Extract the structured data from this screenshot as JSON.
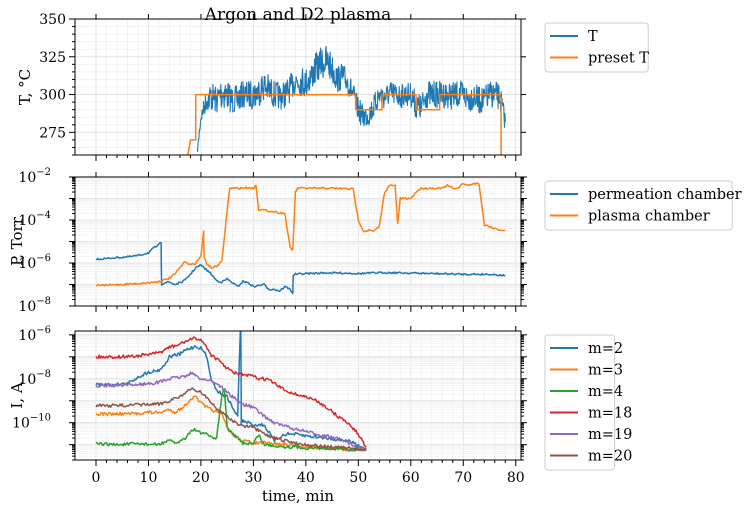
{
  "chart_data": [
    {
      "type": "line",
      "title": "Argon and D2 plasma",
      "xlabel": "",
      "ylabel": "T, °C",
      "xlim": [
        -4,
        81
      ],
      "ylim": [
        260,
        350
      ],
      "yscale": "linear",
      "yticks": [
        275,
        300,
        325,
        350
      ],
      "ytick_labels": [
        "275",
        "300",
        "325",
        "350"
      ],
      "grid": true,
      "legend_position": "outside-right",
      "series": [
        {
          "name": "T",
          "color": "#1f77b4",
          "x": [
            19.3,
            20,
            21,
            22,
            23,
            24,
            25,
            26,
            27,
            28,
            29,
            30,
            31,
            32,
            33,
            34,
            35,
            36,
            37,
            38,
            39,
            40,
            41,
            42,
            43,
            44,
            45,
            46,
            47,
            48,
            49,
            50,
            51,
            52,
            53,
            54,
            55,
            56,
            57,
            58,
            59,
            60,
            61,
            62,
            63,
            64,
            65,
            66,
            67,
            68,
            69,
            70,
            71,
            72,
            73,
            74,
            75,
            76,
            77,
            78
          ],
          "y": [
            262,
            285,
            296,
            299,
            296,
            302,
            300,
            296,
            297,
            300,
            300,
            300,
            302,
            306,
            303,
            300,
            299,
            300,
            304,
            309,
            309,
            308,
            312,
            318,
            321,
            322,
            317,
            310,
            312,
            308,
            300,
            290,
            285,
            287,
            292,
            300,
            298,
            301,
            300,
            299,
            300,
            300,
            293,
            291,
            300,
            300,
            300,
            300,
            300,
            299,
            300,
            300,
            297,
            299,
            296,
            296,
            300,
            300,
            298,
            282
          ],
          "band": [
            2,
            4,
            7,
            10,
            9,
            12,
            10,
            9,
            9,
            9,
            9,
            10,
            10,
            10,
            10,
            9,
            9,
            9,
            9,
            9,
            10,
            10,
            10,
            10,
            11,
            11,
            10,
            9,
            9,
            8,
            8,
            8,
            8,
            8,
            8,
            8,
            8,
            8,
            8,
            8,
            8,
            8,
            9,
            9,
            9,
            9,
            9,
            9,
            9,
            9,
            9,
            9,
            9,
            9,
            9,
            9,
            9,
            9,
            9,
            6
          ]
        },
        {
          "name": "preset T",
          "color": "#ff7f0e",
          "x": [
            17.5,
            18,
            19,
            19,
            49.5,
            49.5,
            52.5,
            52.5,
            54.5,
            54.5,
            58,
            58,
            61,
            61,
            65.5,
            65.5,
            68.5,
            68.5,
            77,
            77,
            77.2,
            77.2
          ],
          "y": [
            260,
            270,
            270,
            300,
            300,
            290,
            290,
            290,
            290,
            300,
            300,
            300,
            300,
            290,
            290,
            300,
            300,
            300,
            300,
            298,
            298,
            260
          ]
        }
      ]
    },
    {
      "type": "line",
      "title": "",
      "xlabel": "",
      "ylabel": "P, Torr",
      "xlim": [
        -4,
        81
      ],
      "ylim": [
        1e-08,
        0.01
      ],
      "yscale": "log",
      "yticks": [
        1e-08,
        1e-06,
        0.0001,
        0.01
      ],
      "ytick_labels": [
        "10−8",
        "10−6",
        "10−4",
        "10−2"
      ],
      "grid": true,
      "legend_position": "outside-right",
      "series": [
        {
          "name": "permeation chamber",
          "color": "#1f77b4",
          "x": [
            0,
            2,
            4,
            6,
            8,
            10,
            11,
            12,
            12.4,
            12.5,
            13,
            14,
            15,
            16,
            17,
            18,
            19,
            20,
            21,
            22,
            23,
            24,
            25,
            26,
            27,
            28,
            29,
            30,
            31,
            32,
            33,
            34,
            35,
            36,
            37,
            37.5,
            37.6,
            38,
            40,
            44,
            48,
            50,
            55,
            60,
            65,
            70,
            75,
            78
          ],
          "y": [
            1.5e-06,
            1.6e-06,
            1.8e-06,
            1.9e-06,
            2.2e-06,
            3e-06,
            5e-06,
            7e-06,
            9e-06,
            1e-07,
            1.2e-07,
            1.3e-07,
            1e-07,
            1.2e-07,
            1.6e-07,
            3e-07,
            6e-07,
            8e-07,
            5e-07,
            3e-07,
            1.5e-07,
            1.3e-07,
            1.8e-07,
            1.2e-07,
            8e-08,
            1.4e-07,
            1.2e-07,
            8e-08,
            9e-08,
            1e-07,
            6e-08,
            6e-08,
            5e-08,
            8e-08,
            6e-08,
            4e-08,
            2.8e-07,
            3e-07,
            3.2e-07,
            3.5e-07,
            3.4e-07,
            3.2e-07,
            3.6e-07,
            3.4e-07,
            3.2e-07,
            3e-07,
            3e-07,
            2.6e-07
          ]
        },
        {
          "name": "plasma chamber",
          "color": "#ff7f0e",
          "x": [
            0,
            5,
            10,
            11,
            12,
            13,
            14,
            15,
            16,
            17,
            18,
            19,
            20,
            20.5,
            20.6,
            21,
            22,
            23,
            24,
            25,
            25.5,
            26,
            27,
            29,
            30,
            30.5,
            31,
            31.5,
            36,
            37,
            37.5,
            38,
            38.5,
            39,
            40,
            45,
            49,
            50,
            51,
            52,
            53,
            54,
            55,
            56,
            57,
            57.5,
            58,
            60,
            61,
            62,
            63,
            64,
            65,
            66,
            67,
            68,
            69,
            70,
            71,
            72,
            73,
            74,
            75,
            76,
            77,
            78
          ],
          "y": [
            9e-08,
            1e-07,
            1.2e-07,
            1.3e-07,
            1.4e-07,
            1.6e-07,
            2e-07,
            3e-07,
            6e-07,
            1.2e-06,
            8e-07,
            1e-06,
            2e-06,
            3e-05,
            2e-06,
            1e-06,
            6e-07,
            7e-07,
            1.2e-06,
            0.0003,
            0.003,
            0.003,
            0.003,
            0.0032,
            0.003,
            0.004,
            0.0003,
            0.0003,
            0.0002,
            5e-06,
            4e-06,
            0.002,
            0.003,
            0.003,
            0.003,
            0.003,
            0.0028,
            0.0001,
            3e-05,
            3.3e-05,
            3e-05,
            5e-05,
            0.002,
            0.004,
            0.004,
            7e-05,
            0.001,
            0.001,
            0.002,
            0.003,
            0.003,
            0.003,
            0.003,
            0.003,
            0.004,
            0.003,
            0.003,
            0.005,
            0.004,
            0.005,
            0.005,
            6e-05,
            5e-05,
            4e-05,
            3.5e-05,
            3.2e-05
          ]
        }
      ]
    },
    {
      "type": "line",
      "title": "",
      "xlabel": "time, min",
      "ylabel": "I, A",
      "xlim": [
        -4,
        81
      ],
      "ylim": [
        2e-12,
        1.5e-06
      ],
      "yscale": "log",
      "yticks": [
        1e-10,
        1e-08,
        1e-06
      ],
      "ytick_labels": [
        "10−10",
        "10−8",
        "10−6"
      ],
      "xticks": [
        0,
        10,
        20,
        30,
        40,
        50,
        60,
        70,
        80
      ],
      "xtick_labels": [
        "0",
        "10",
        "20",
        "30",
        "40",
        "50",
        "60",
        "70",
        "80"
      ],
      "grid": true,
      "legend_position": "outside-right",
      "series": [
        {
          "name": "m=2",
          "color": "#1f77b4",
          "x": [
            0,
            4,
            6,
            8,
            10,
            12,
            13,
            14,
            15,
            16,
            17,
            18,
            19,
            20,
            21,
            22,
            23,
            24,
            25,
            26,
            27,
            27.5,
            27.6,
            27.7,
            28,
            29,
            30,
            32,
            34,
            36,
            38,
            40,
            44,
            48,
            50,
            51.5
          ],
          "y": [
            5.5e-09,
            5.5e-09,
            6e-09,
            1.2e-08,
            2e-08,
            2.5e-08,
            4e-08,
            1e-07,
            1.2e-07,
            1.3e-07,
            2e-07,
            2.5e-07,
            3e-07,
            2.5e-07,
            1.2e-07,
            1e-08,
            3e-09,
            2e-09,
            1.5e-09,
            5e-10,
            2e-10,
            1.5e-06,
            1.5e-06,
            1e-10,
            1.2e-10,
            1e-10,
            8e-11,
            8e-11,
            1.5e-11,
            3e-11,
            3e-11,
            2.5e-11,
            2e-11,
            1.5e-11,
            1e-11,
            6e-12
          ]
        },
        {
          "name": "m=3",
          "color": "#ff7f0e",
          "x": [
            0,
            4,
            8,
            10,
            12,
            14,
            15,
            16,
            17,
            18,
            19,
            20,
            21,
            22,
            23,
            24,
            25,
            26,
            27,
            28,
            30,
            32,
            34,
            36,
            38,
            40,
            44,
            48,
            51.5
          ],
          "y": [
            2.5e-10,
            2.5e-10,
            2.6e-10,
            3e-10,
            2.8e-10,
            4e-10,
            3e-10,
            4e-10,
            6e-10,
            1.2e-09,
            1.5e-09,
            8e-10,
            5e-10,
            4e-10,
            3e-10,
            2.5e-10,
            6e-11,
            3e-11,
            2e-11,
            1.5e-11,
            1.2e-11,
            1.2e-11,
            1.1e-11,
            1e-11,
            9e-12,
            8e-12,
            7e-12,
            6e-12,
            6e-12
          ]
        },
        {
          "name": "m=4",
          "color": "#2ca02c",
          "x": [
            0,
            4,
            8,
            12,
            13,
            14,
            15,
            16,
            17,
            18,
            19,
            20,
            21,
            22,
            23,
            24,
            24.5,
            25,
            26,
            27,
            28,
            30,
            31,
            32,
            34,
            36,
            38,
            40,
            44,
            48,
            51.5
          ],
          "y": [
            1.1e-11,
            1e-11,
            1.1e-11,
            1e-11,
            1.3e-11,
            1.5e-11,
            1.2e-11,
            1.4e-11,
            2e-11,
            4e-11,
            5e-11,
            3e-11,
            3.5e-11,
            2e-11,
            2e-11,
            2e-09,
            3e-09,
            6e-11,
            3e-11,
            2e-11,
            1.2e-11,
            1.1e-11,
            3e-11,
            1e-11,
            9e-12,
            8e-12,
            8e-12,
            7e-12,
            7e-12,
            6e-12,
            6e-12
          ]
        },
        {
          "name": "m=18",
          "color": "#d62728",
          "x": [
            0,
            4,
            8,
            10,
            12,
            13,
            14,
            15,
            16,
            17,
            18,
            19,
            20,
            21,
            22,
            23,
            24,
            25,
            26,
            28,
            30,
            31,
            32,
            33,
            34,
            36,
            38,
            40,
            42,
            44,
            46,
            48,
            50,
            51.5
          ],
          "y": [
            1e-07,
            1e-07,
            1.1e-07,
            1.3e-07,
            1.5e-07,
            2e-07,
            2.8e-07,
            3e-07,
            3.8e-07,
            5e-07,
            6e-07,
            7e-07,
            6e-07,
            3e-07,
            1.2e-07,
            8e-08,
            5e-08,
            3e-08,
            2e-08,
            1.5e-08,
            1.3e-08,
            1e-08,
            1e-08,
            9e-09,
            6e-09,
            3e-09,
            2e-09,
            1.5e-09,
            1e-09,
            5e-10,
            2e-10,
            1e-10,
            3e-11,
            8e-12
          ]
        },
        {
          "name": "m=19",
          "color": "#9467bd",
          "x": [
            0,
            4,
            8,
            10,
            12,
            14,
            15,
            16,
            17,
            18,
            19,
            20,
            21,
            22,
            23,
            24,
            25,
            26,
            27,
            28,
            30,
            32,
            34,
            36,
            38,
            40,
            42,
            44,
            46,
            48,
            50,
            51.5
          ],
          "y": [
            5e-09,
            5e-09,
            5.5e-09,
            6e-09,
            7e-09,
            1e-08,
            1.1e-08,
            1.2e-08,
            1.3e-08,
            1.8e-08,
            1.4e-08,
            1e-08,
            9e-09,
            8e-09,
            6e-09,
            4e-09,
            2.5e-09,
            1.5e-09,
            1e-09,
            7e-10,
            5e-10,
            2e-10,
            1e-10,
            7e-11,
            5e-11,
            4e-11,
            3e-11,
            2.5e-11,
            1.8e-11,
            1.2e-11,
            8e-12,
            6e-12
          ]
        },
        {
          "name": "m=20",
          "color": "#8c564b",
          "x": [
            0,
            4,
            8,
            12,
            14,
            15,
            16,
            17,
            18,
            19,
            20,
            21,
            22,
            23,
            24,
            25,
            26,
            28,
            30,
            32,
            34,
            36,
            38,
            40,
            44,
            48,
            51.5
          ],
          "y": [
            6e-10,
            6e-10,
            6.5e-10,
            7e-10,
            1e-09,
            1.3e-09,
            1.6e-09,
            2e-09,
            3.5e-09,
            3e-09,
            2.5e-09,
            1.5e-09,
            8e-10,
            4e-10,
            3e-10,
            2e-10,
            1.2e-10,
            7e-11,
            6e-11,
            3e-11,
            2e-11,
            1.5e-11,
            1.2e-11,
            1e-11,
            8e-12,
            7e-12,
            6e-12
          ]
        }
      ]
    }
  ]
}
